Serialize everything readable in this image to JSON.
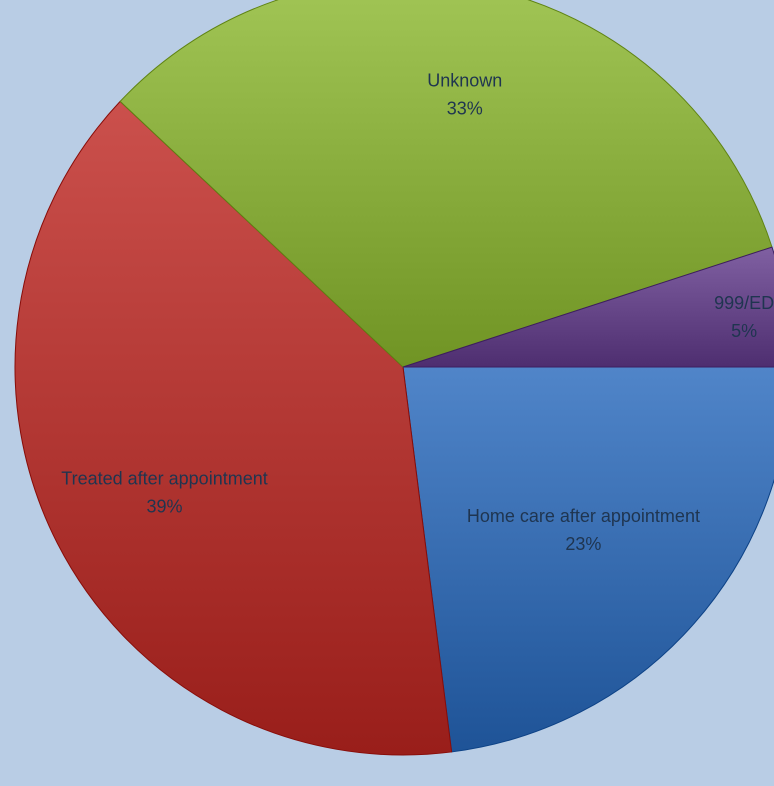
{
  "chart_data": {
    "type": "pie",
    "title": "",
    "start_angle_deg": 0,
    "direction": "clockwise",
    "slices": [
      {
        "name": "Home care after appointment",
        "value": 23,
        "pct_label": "23%",
        "color": "#3a6fb3"
      },
      {
        "name": "Treated after appointment",
        "value": 39,
        "pct_label": "39%",
        "color": "#b53a36"
      },
      {
        "name": "Unknown",
        "value": 33,
        "pct_label": "33%",
        "color": "#8cb040"
      },
      {
        "name": "999/ED",
        "value": 5,
        "pct_label": "5%",
        "color": "#6a4a8c"
      }
    ],
    "legend": "none",
    "data_labels": "category-and-percent"
  },
  "background_color": "#b9cde5"
}
